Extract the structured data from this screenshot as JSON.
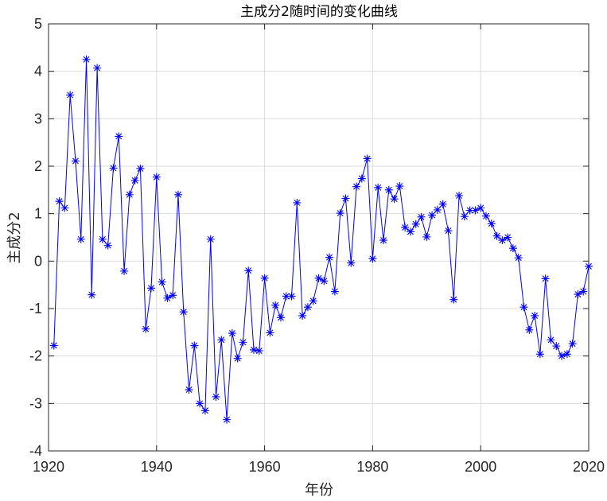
{
  "chart_data": {
    "type": "line",
    "title": "主成分2随时间的变化曲线",
    "xlabel": "年份",
    "ylabel": "主成分2",
    "xlim": [
      1920,
      2020
    ],
    "ylim": [
      -4,
      5
    ],
    "xticks": [
      "1920",
      "1940",
      "1960",
      "1980",
      "2000",
      "2020"
    ],
    "yticks": [
      "-4",
      "-3",
      "-2",
      "-1",
      "0",
      "1",
      "2",
      "3",
      "4",
      "5"
    ],
    "xtick_values": [
      1920,
      1940,
      1960,
      1980,
      2000,
      2020
    ],
    "ytick_values": [
      -4,
      -3,
      -2,
      -1,
      0,
      1,
      2,
      3,
      4,
      5
    ],
    "grid": true,
    "marker": "asterisk",
    "line_color": "#0000ff",
    "series": [
      {
        "x": [
          1921,
          1922,
          1923,
          1924,
          1925,
          1926,
          1927,
          1928,
          1929,
          1930,
          1931,
          1932,
          1933,
          1934,
          1935,
          1936,
          1937,
          1938,
          1939,
          1940,
          1941,
          1942,
          1943,
          1944,
          1945,
          1946,
          1947,
          1948,
          1949,
          1950,
          1951,
          1952,
          1953,
          1954,
          1955,
          1956,
          1957,
          1958,
          1959,
          1960,
          1961,
          1962,
          1963,
          1964,
          1965,
          1966,
          1967,
          1968,
          1969,
          1970,
          1971,
          1972,
          1973,
          1974,
          1975,
          1976,
          1977,
          1978,
          1979,
          1980,
          1981,
          1982,
          1983,
          1984,
          1985,
          1986,
          1987,
          1988,
          1989,
          1990,
          1991,
          1992,
          1993,
          1994,
          1995,
          1996,
          1997,
          1998,
          1999,
          2000,
          2001,
          2002,
          2003,
          2004,
          2005,
          2006,
          2007,
          2008,
          2009,
          2010,
          2011,
          2012,
          2013,
          2014,
          2015,
          2016,
          2017,
          2018,
          2019,
          2020
        ],
        "values": [
          -1.78,
          1.26,
          1.12,
          3.5,
          2.11,
          0.46,
          4.25,
          -0.71,
          4.07,
          0.46,
          0.33,
          1.96,
          2.63,
          -0.21,
          1.4,
          1.7,
          1.95,
          -1.43,
          -0.57,
          1.77,
          -0.44,
          -0.78,
          -0.72,
          1.4,
          -1.07,
          -2.71,
          -1.78,
          -3.0,
          -3.15,
          0.46,
          -2.86,
          -1.66,
          -3.34,
          -1.52,
          -2.05,
          -1.71,
          -0.2,
          -1.87,
          -1.89,
          -0.36,
          -1.51,
          -0.93,
          -1.19,
          -0.74,
          -0.74,
          1.23,
          -1.15,
          -0.97,
          -0.84,
          -0.36,
          -0.42,
          0.08,
          -0.64,
          1.01,
          1.32,
          -0.04,
          1.57,
          1.74,
          2.16,
          0.05,
          1.55,
          0.44,
          1.5,
          1.31,
          1.58,
          0.71,
          0.62,
          0.78,
          0.93,
          0.51,
          0.97,
          1.08,
          1.2,
          0.64,
          -0.81,
          1.38,
          0.94,
          1.07,
          1.07,
          1.12,
          0.95,
          0.79,
          0.53,
          0.44,
          0.5,
          0.27,
          0.07,
          -0.97,
          -1.45,
          -1.15,
          -1.96,
          -0.37,
          -1.66,
          -1.79,
          -2.0,
          -1.96,
          -1.74,
          -0.7,
          -0.64,
          -0.11
        ]
      }
    ]
  }
}
